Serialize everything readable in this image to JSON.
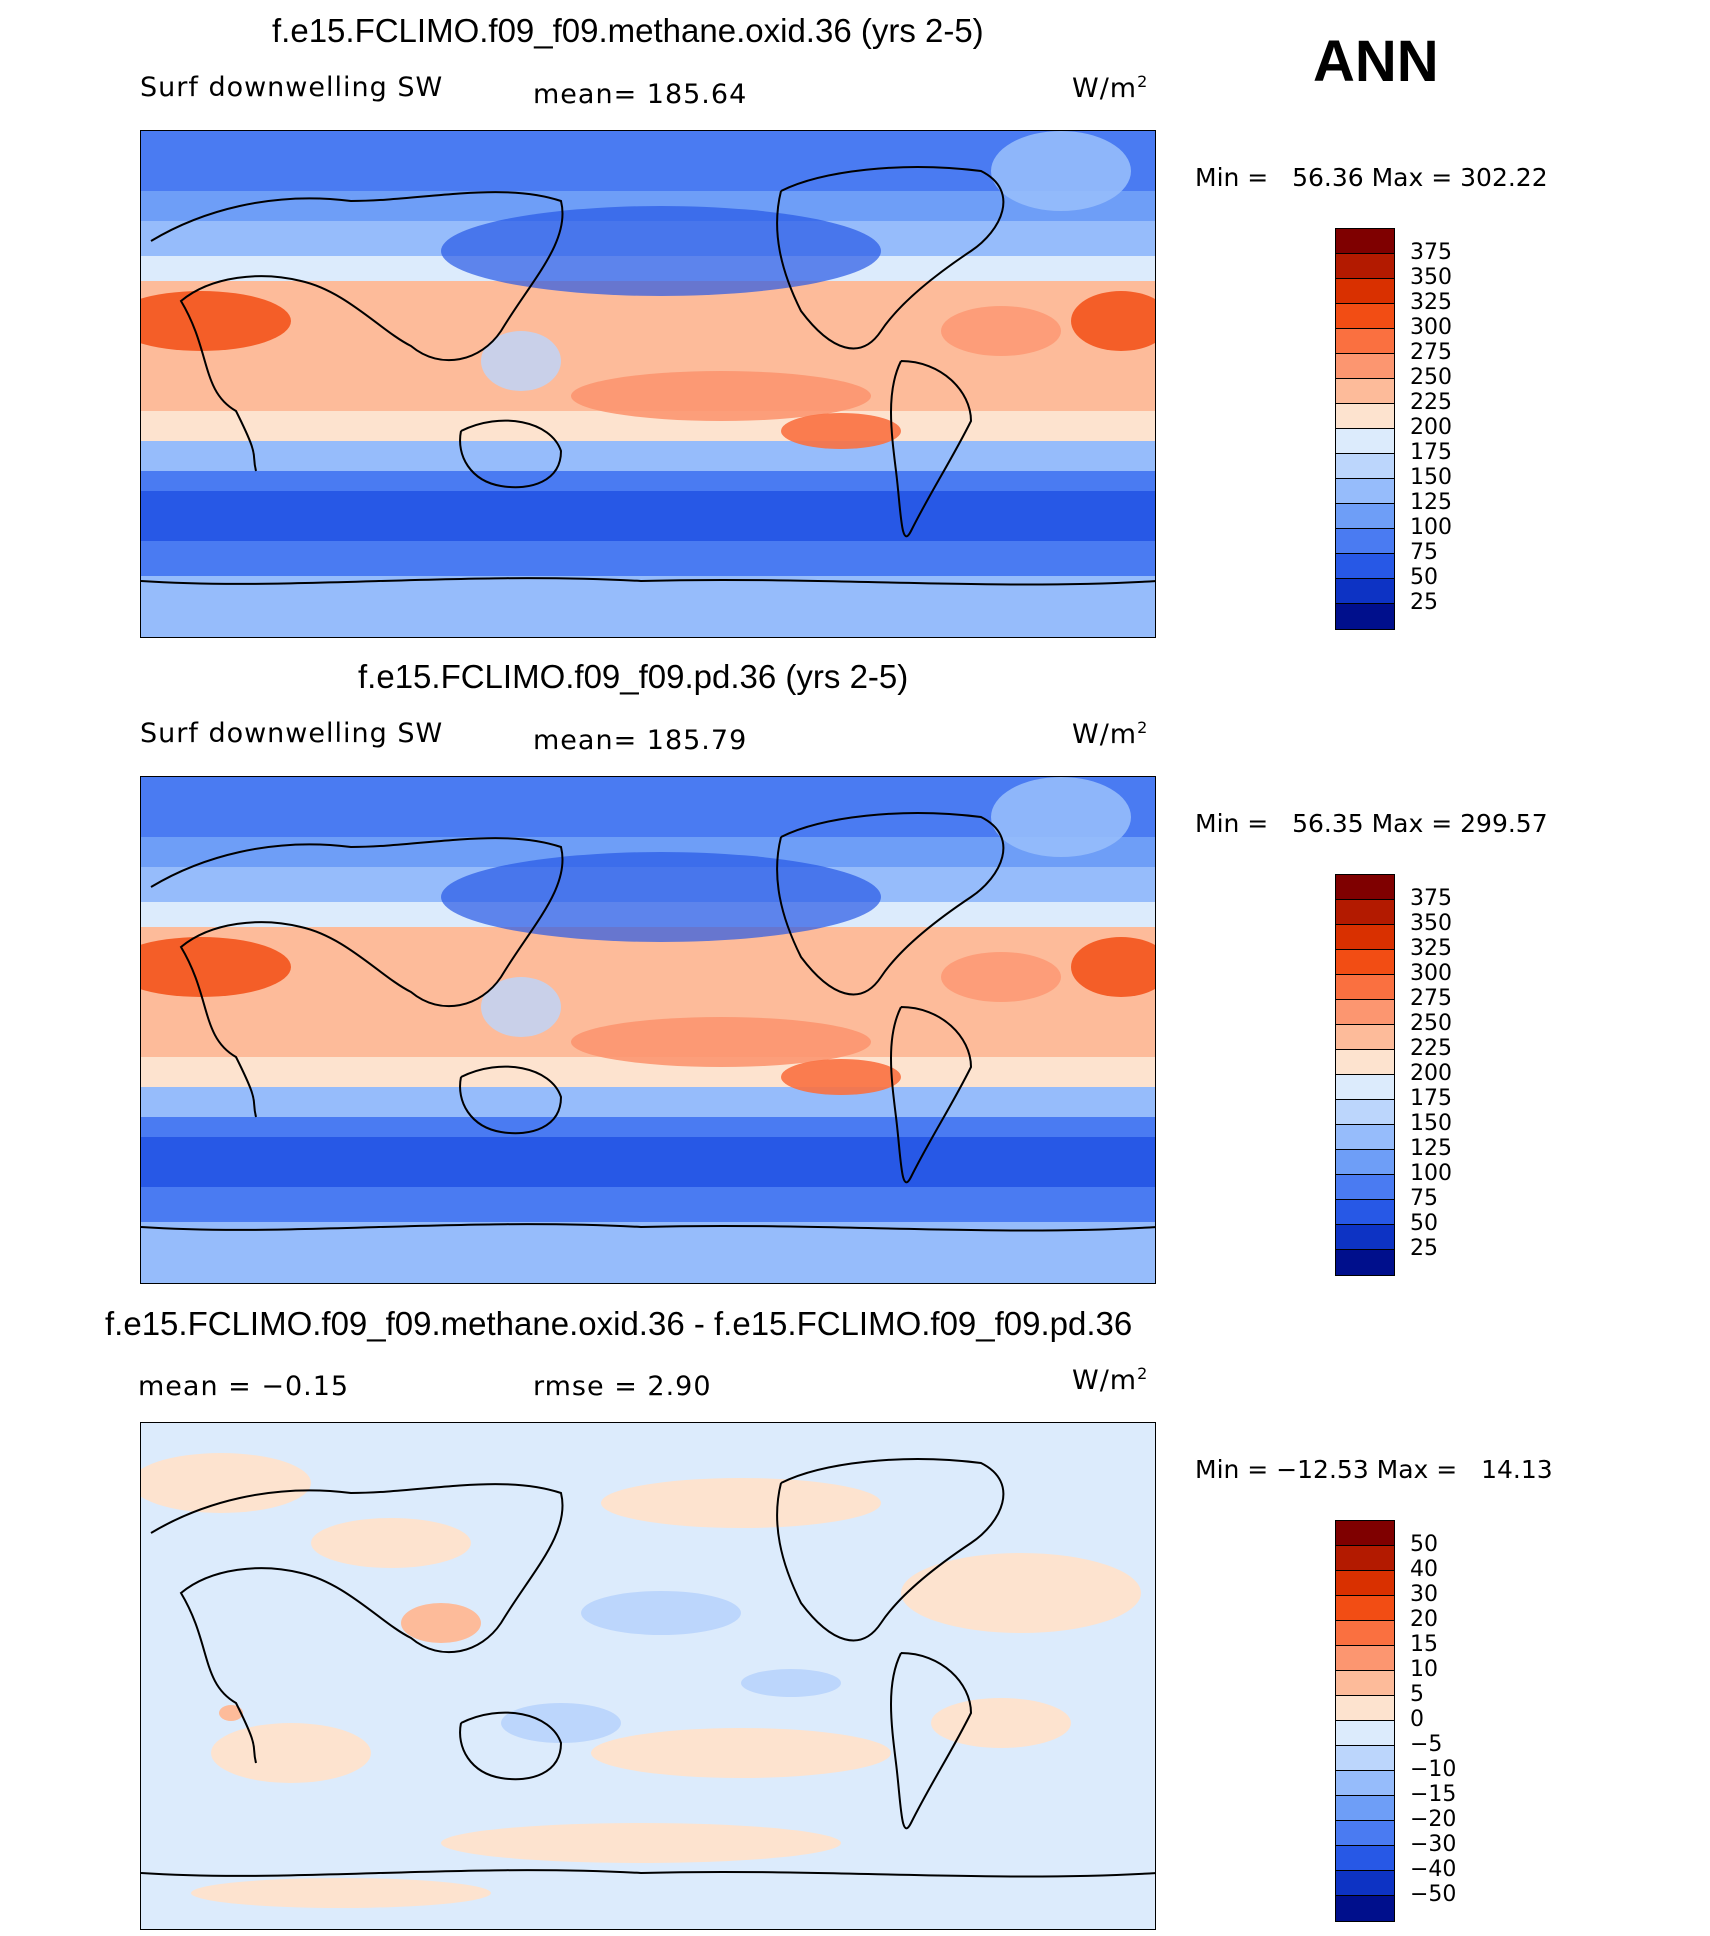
{
  "ann_label": "ANN",
  "panels": [
    {
      "title": "f.e15.FCLIMO.f09_f09.methane.oxid.36 (yrs 2-5)",
      "left_label": "Surf downwelling SW",
      "mid_label": "mean= 185.64",
      "units_base": "W/m",
      "units_exp": "2",
      "minmax": "Min =   56.36 Max = 302.22",
      "palette": "absolute",
      "levels": [
        "375",
        "350",
        "325",
        "300",
        "275",
        "250",
        "225",
        "200",
        "175",
        "150",
        "125",
        "100",
        "75",
        "50",
        "25"
      ]
    },
    {
      "title": "f.e15.FCLIMO.f09_f09.pd.36 (yrs 2-5)",
      "left_label": "Surf downwelling SW",
      "mid_label": "mean= 185.79",
      "units_base": "W/m",
      "units_exp": "2",
      "minmax": "Min =   56.35 Max = 299.57",
      "palette": "absolute",
      "levels": [
        "375",
        "350",
        "325",
        "300",
        "275",
        "250",
        "225",
        "200",
        "175",
        "150",
        "125",
        "100",
        "75",
        "50",
        "25"
      ]
    },
    {
      "title": "f.e15.FCLIMO.f09_f09.methane.oxid.36 - f.e15.FCLIMO.f09_f09.pd.36",
      "left_label": "mean =   −0.15",
      "mid_label": "rmse =    2.90",
      "units_base": "W/m",
      "units_exp": "2",
      "minmax": "Min = −12.53 Max =   14.13",
      "palette": "difference",
      "levels": [
        "50",
        "40",
        "30",
        "20",
        "15",
        "10",
        "5",
        "0",
        "−5",
        "−10",
        "−15",
        "−20",
        "−30",
        "−40",
        "−50"
      ]
    }
  ],
  "colors": {
    "swatches": [
      "#7f0000",
      "#b31a00",
      "#d93000",
      "#f24d14",
      "#fa7040",
      "#fc9670",
      "#fdbb9a",
      "#fde3cf",
      "#dcebfc",
      "#bcd6fc",
      "#96bcfb",
      "#6e9ef7",
      "#4a7bf2",
      "#2758e6",
      "#0d33c4",
      "#000f8c"
    ]
  }
}
